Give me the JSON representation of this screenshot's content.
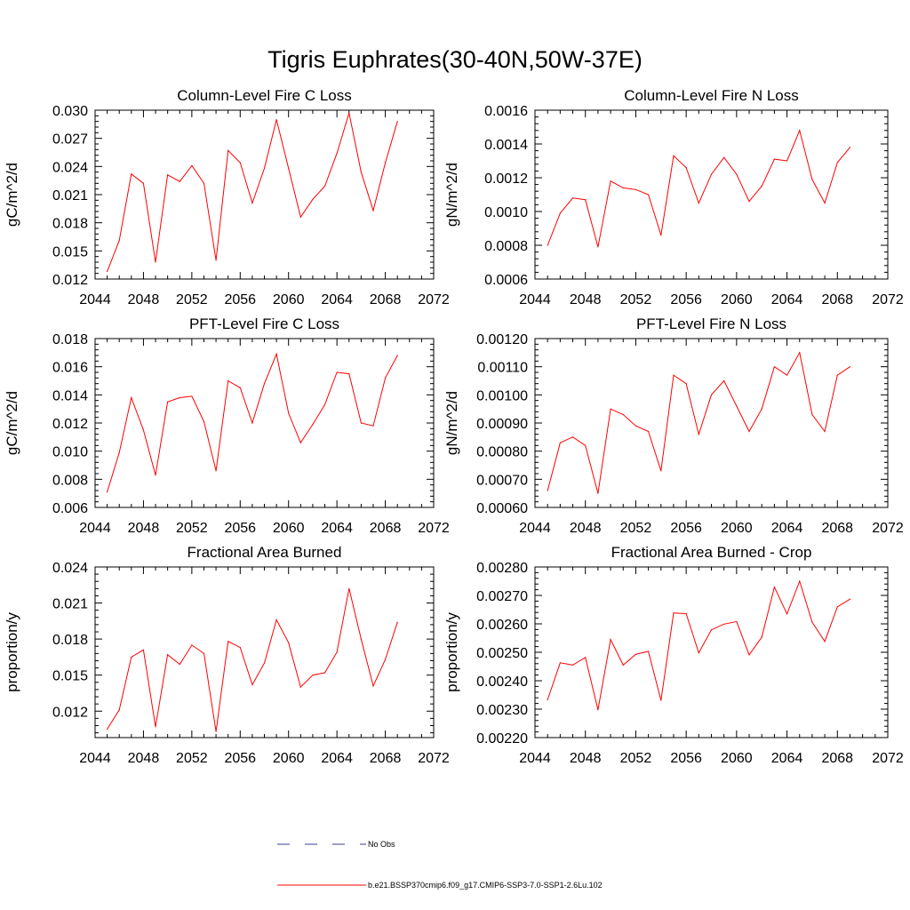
{
  "title": "Tigris Euphrates(30-40N,50W-37E)",
  "colors": {
    "model": "#ff0000",
    "obs": "#3a3a9a",
    "axis": "#000000"
  },
  "legend": {
    "obs_label": "No Obs",
    "model_label": "b.e21.BSSP370cmip6.f09_g17.CMIP6-SSP3-7.0-SSP1-2.6Lu.102"
  },
  "chart_data": [
    {
      "type": "line",
      "title": "Column-Level Fire C Loss",
      "ylabel": "gC/m^2/d",
      "xlim": [
        2044,
        2072
      ],
      "xticks": [
        "2044",
        "2048",
        "2052",
        "2056",
        "2060",
        "2064",
        "2068",
        "2072"
      ],
      "ylim": [
        0.012,
        0.03
      ],
      "yticks": [
        "0.012",
        "0.015",
        "0.018",
        "0.021",
        "0.024",
        "0.027",
        "0.030"
      ],
      "x": [
        2045,
        2046,
        2047,
        2048,
        2049,
        2050,
        2051,
        2052,
        2053,
        2054,
        2055,
        2056,
        2057,
        2058,
        2059,
        2060,
        2061,
        2062,
        2063,
        2064,
        2065,
        2066,
        2067,
        2068,
        2069
      ],
      "series": [
        {
          "values": [
            0.0128,
            0.0161,
            0.0232,
            0.0222,
            0.0138,
            0.0231,
            0.0224,
            0.0241,
            0.0222,
            0.014,
            0.0257,
            0.0244,
            0.0201,
            0.0238,
            0.029,
            0.0238,
            0.0186,
            0.0205,
            0.0219,
            0.0254,
            0.0297,
            0.0234,
            0.0193,
            0.0244,
            0.0288
          ]
        }
      ]
    },
    {
      "type": "line",
      "title": "Column-Level Fire N Loss",
      "ylabel": "gN/m^2/d",
      "xlim": [
        2044,
        2072
      ],
      "xticks": [
        "2044",
        "2048",
        "2052",
        "2056",
        "2060",
        "2064",
        "2068",
        "2072"
      ],
      "ylim": [
        0.0006,
        0.0016
      ],
      "yticks": [
        "0.0006",
        "0.0008",
        "0.0010",
        "0.0012",
        "0.0014",
        "0.0016"
      ],
      "x": [
        2045,
        2046,
        2047,
        2048,
        2049,
        2050,
        2051,
        2052,
        2053,
        2054,
        2055,
        2056,
        2057,
        2058,
        2059,
        2060,
        2061,
        2062,
        2063,
        2064,
        2065,
        2066,
        2067,
        2068,
        2069
      ],
      "series": [
        {
          "values": [
            0.0008,
            0.00099,
            0.00108,
            0.00107,
            0.00079,
            0.00118,
            0.00114,
            0.00113,
            0.0011,
            0.00086,
            0.00133,
            0.00126,
            0.00105,
            0.00122,
            0.00132,
            0.00122,
            0.00106,
            0.00115,
            0.00131,
            0.0013,
            0.00148,
            0.00119,
            0.00105,
            0.00129,
            0.00138
          ]
        }
      ]
    },
    {
      "type": "line",
      "title": "PFT-Level Fire C Loss",
      "ylabel": "gC/m^2/d",
      "xlim": [
        2044,
        2072
      ],
      "xticks": [
        "2044",
        "2048",
        "2052",
        "2056",
        "2060",
        "2064",
        "2068",
        "2072"
      ],
      "ylim": [
        0.006,
        0.018
      ],
      "yticks": [
        "0.006",
        "0.008",
        "0.010",
        "0.012",
        "0.014",
        "0.016",
        "0.018"
      ],
      "x": [
        2045,
        2046,
        2047,
        2048,
        2049,
        2050,
        2051,
        2052,
        2053,
        2054,
        2055,
        2056,
        2057,
        2058,
        2059,
        2060,
        2061,
        2062,
        2063,
        2064,
        2065,
        2066,
        2067,
        2068,
        2069
      ],
      "series": [
        {
          "values": [
            0.0071,
            0.0099,
            0.0138,
            0.0115,
            0.0083,
            0.0135,
            0.0138,
            0.0139,
            0.0121,
            0.0086,
            0.015,
            0.0145,
            0.012,
            0.0148,
            0.0169,
            0.0127,
            0.0106,
            0.0119,
            0.0133,
            0.0156,
            0.0155,
            0.012,
            0.0118,
            0.0152,
            0.0168
          ]
        }
      ]
    },
    {
      "type": "line",
      "title": "PFT-Level Fire N Loss",
      "ylabel": "gN/m^2/d",
      "xlim": [
        2044,
        2072
      ],
      "xticks": [
        "2044",
        "2048",
        "2052",
        "2056",
        "2060",
        "2064",
        "2068",
        "2072"
      ],
      "ylim": [
        0.0006,
        0.0012
      ],
      "yticks": [
        "0.00060",
        "0.00070",
        "0.00080",
        "0.00090",
        "0.00100",
        "0.00110",
        "0.00120"
      ],
      "x": [
        2045,
        2046,
        2047,
        2048,
        2049,
        2050,
        2051,
        2052,
        2053,
        2054,
        2055,
        2056,
        2057,
        2058,
        2059,
        2060,
        2061,
        2062,
        2063,
        2064,
        2065,
        2066,
        2067,
        2068,
        2069
      ],
      "series": [
        {
          "values": [
            0.00066,
            0.00083,
            0.00085,
            0.00082,
            0.00065,
            0.00095,
            0.00093,
            0.00089,
            0.00087,
            0.00073,
            0.00107,
            0.00104,
            0.00086,
            0.001,
            0.00105,
            0.00096,
            0.00087,
            0.00095,
            0.0011,
            0.00107,
            0.00115,
            0.00093,
            0.00087,
            0.00107,
            0.0011
          ]
        }
      ]
    },
    {
      "type": "line",
      "title": "Fractional Area Burned",
      "ylabel": "proportion/y",
      "xlim": [
        2044,
        2072
      ],
      "xticks": [
        "2044",
        "2048",
        "2052",
        "2056",
        "2060",
        "2064",
        "2068",
        "2072"
      ],
      "ylim": [
        0.0098,
        0.024
      ],
      "yticks": [
        "0.012",
        "0.015",
        "0.018",
        "0.021",
        "0.024"
      ],
      "x": [
        2045,
        2046,
        2047,
        2048,
        2049,
        2050,
        2051,
        2052,
        2053,
        2054,
        2055,
        2056,
        2057,
        2058,
        2059,
        2060,
        2061,
        2062,
        2063,
        2064,
        2065,
        2066,
        2067,
        2068,
        2069
      ],
      "series": [
        {
          "values": [
            0.0105,
            0.0121,
            0.0165,
            0.0171,
            0.0107,
            0.0167,
            0.0159,
            0.0175,
            0.0168,
            0.0103,
            0.0178,
            0.0173,
            0.0142,
            0.016,
            0.0196,
            0.0177,
            0.014,
            0.015,
            0.0152,
            0.0169,
            0.0222,
            0.018,
            0.0141,
            0.0163,
            0.0194
          ]
        }
      ]
    },
    {
      "type": "line",
      "title": "Fractional Area Burned - Crop",
      "ylabel": "proportion/y",
      "xlim": [
        2044,
        2072
      ],
      "xticks": [
        "2044",
        "2048",
        "2052",
        "2056",
        "2060",
        "2064",
        "2068",
        "2072"
      ],
      "ylim": [
        0.0022,
        0.0028
      ],
      "yticks": [
        "0.00220",
        "0.00230",
        "0.00240",
        "0.00250",
        "0.00260",
        "0.00270",
        "0.00280"
      ],
      "x": [
        2045,
        2046,
        2047,
        2048,
        2049,
        2050,
        2051,
        2052,
        2053,
        2054,
        2055,
        2056,
        2057,
        2058,
        2059,
        2060,
        2061,
        2062,
        2063,
        2064,
        2065,
        2066,
        2067,
        2068,
        2069
      ],
      "series": [
        {
          "values": [
            0.002333,
            0.002463,
            0.002455,
            0.002482,
            0.002298,
            0.002545,
            0.002455,
            0.002493,
            0.002503,
            0.002331,
            0.002638,
            0.002636,
            0.002498,
            0.002579,
            0.002599,
            0.002608,
            0.002491,
            0.002553,
            0.002729,
            0.002635,
            0.00275,
            0.002606,
            0.002538,
            0.00266,
            0.002687
          ]
        }
      ]
    }
  ]
}
